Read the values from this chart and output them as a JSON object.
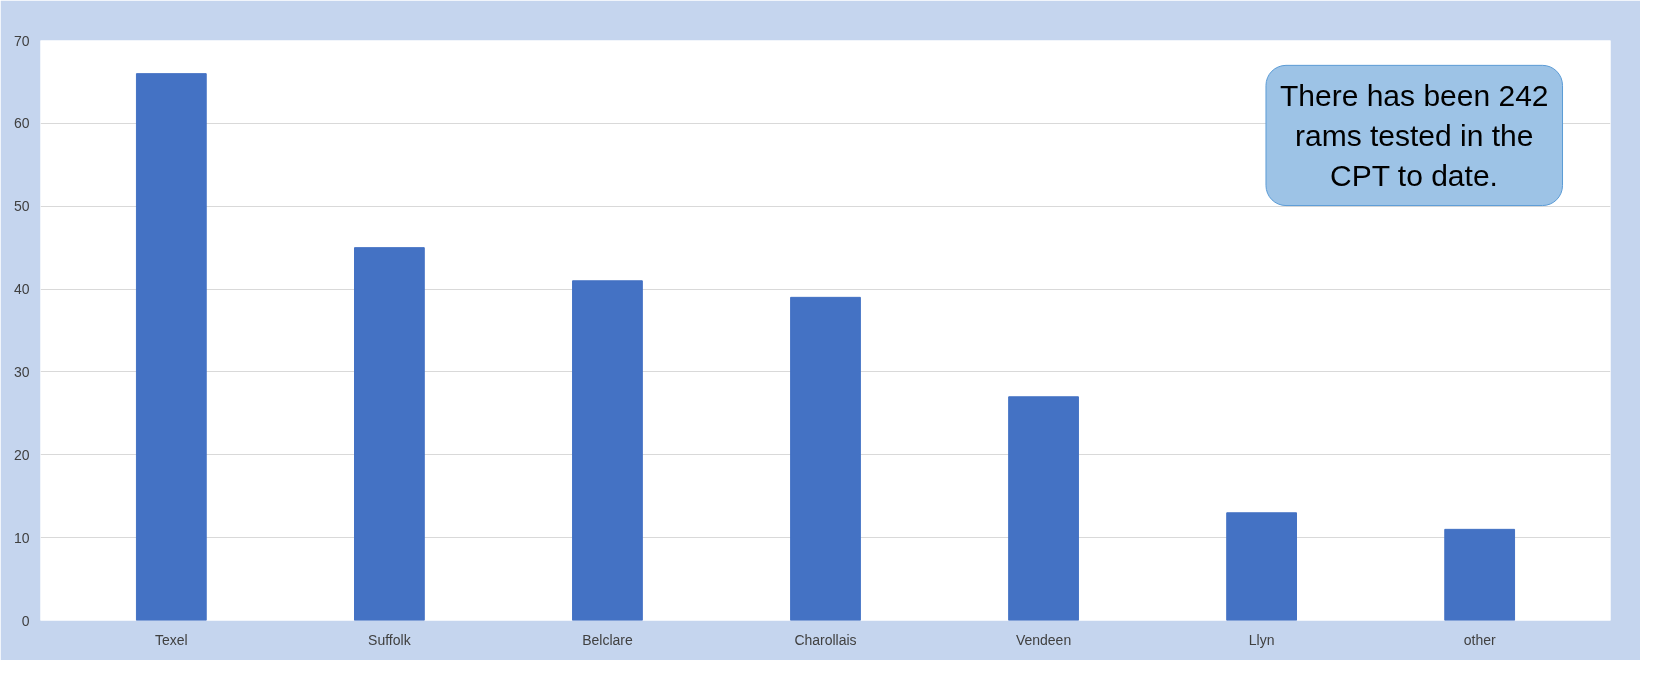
{
  "chart_data": {
    "type": "bar",
    "categories": [
      "Texel",
      "Suffolk",
      "Belclare",
      "Charollais",
      "Vendeen",
      "Llyn",
      "other"
    ],
    "values": [
      66,
      45,
      41,
      39,
      27,
      13,
      11
    ],
    "color": "#4472c4",
    "ylim": [
      0,
      70
    ],
    "yticks": [
      0,
      10,
      20,
      30,
      40,
      50,
      60,
      70
    ],
    "grid": "y",
    "annotations": [
      "There has been 242 rams tested in the CPT to date."
    ]
  }
}
